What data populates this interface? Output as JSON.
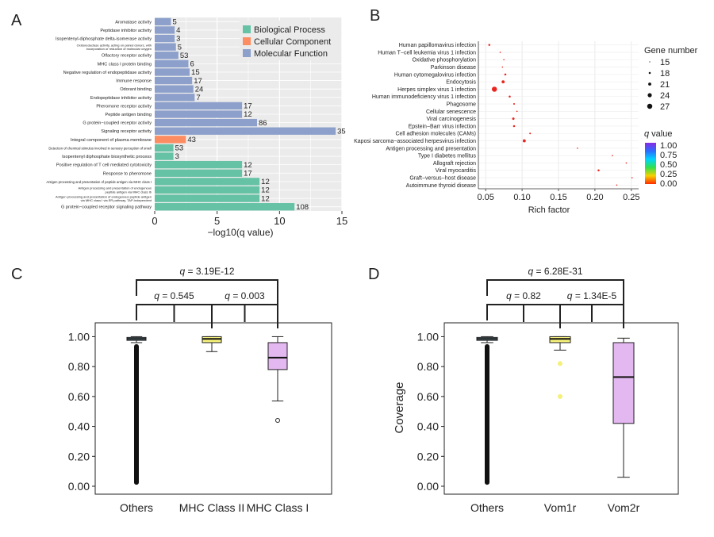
{
  "chart_data": [
    {
      "panel": "A",
      "type": "bar",
      "orientation": "horizontal",
      "xlabel": "−log10(q value)",
      "xlim": [
        0,
        15
      ],
      "xticks": [
        "0",
        "5",
        "10",
        "15"
      ],
      "legend": {
        "placement": "top-right",
        "entries": [
          {
            "name": "Biological Process",
            "color": "#66c2a5"
          },
          {
            "name": "Cellular Component",
            "color": "#fc8d62"
          },
          {
            "name": "Molecular Function",
            "color": "#8da0cb"
          }
        ]
      },
      "bars": [
        {
          "label": "Aromatase activity",
          "value": 1.3,
          "count": "5",
          "group": "Molecular Function"
        },
        {
          "label": "Peptidase inhibitor activity",
          "value": 1.6,
          "count": "4",
          "group": "Molecular Function"
        },
        {
          "label": "Isopentenyl-diphosphate delta-isomerase activity",
          "value": 1.6,
          "count": "3",
          "group": "Molecular Function"
        },
        {
          "label": "Oxidoreductase activity, acting on paired donors, with incorporation or reduction of molecular oxygen",
          "value": 1.7,
          "count": "5",
          "group": "Molecular Function"
        },
        {
          "label": "Olfactory receptor activity",
          "value": 1.9,
          "count": "53",
          "group": "Molecular Function"
        },
        {
          "label": "MHC class I protein binding",
          "value": 2.7,
          "count": "6",
          "group": "Molecular Function"
        },
        {
          "label": "Negative regulation of endopeptidase activity",
          "value": 2.8,
          "count": "15",
          "group": "Molecular Function"
        },
        {
          "label": "Immune response",
          "value": 3.0,
          "count": "17",
          "group": "Molecular Function"
        },
        {
          "label": "Odorant binding",
          "value": 3.1,
          "count": "24",
          "group": "Molecular Function"
        },
        {
          "label": "Endopeptidase inhibitor activity",
          "value": 3.2,
          "count": "7",
          "group": "Molecular Function"
        },
        {
          "label": "Pheromone receptor activity",
          "value": 7.0,
          "count": "17",
          "group": "Molecular Function"
        },
        {
          "label": "Peptide antigen binding",
          "value": 7.0,
          "count": "12",
          "group": "Molecular Function"
        },
        {
          "label": "G protein−coupled receptor activity",
          "value": 8.2,
          "count": "86",
          "group": "Molecular Function"
        },
        {
          "label": "Signaling receptor activity",
          "value": 14.5,
          "count": "35",
          "group": "Molecular Function"
        },
        {
          "label": "Integral component of plasma membrane",
          "value": 2.5,
          "count": "43",
          "group": "Cellular Component"
        },
        {
          "label": "Detection of chemical stimulus involved in sensory perception of smell",
          "value": 1.5,
          "count": "53",
          "group": "Biological Process"
        },
        {
          "label": "Isopentenyl diphosphate biosynthetic process",
          "value": 1.5,
          "count": "3",
          "group": "Biological Process"
        },
        {
          "label": "Positive regulation of T cell mediated cytotoxicity",
          "value": 7.0,
          "count": "12",
          "group": "Biological Process"
        },
        {
          "label": "Response to pheromone",
          "value": 7.0,
          "count": "17",
          "group": "Biological Process"
        },
        {
          "label": "Antigen processing and presentation of peptide antigen via MHC class I",
          "value": 8.4,
          "count": "12",
          "group": "Biological Process"
        },
        {
          "label": "Antigen processing and presentation of endogenous peptide antigen via MHC class Ib",
          "value": 8.4,
          "count": "12",
          "group": "Biological Process"
        },
        {
          "label": "Antigen processing and presentation of endogenous peptide antigen via MHC class I via ER pathway, TAP-independent",
          "value": 8.4,
          "count": "12",
          "group": "Biological Process"
        },
        {
          "label": "G protein−coupled receptor signaling pathway",
          "value": 11.2,
          "count": "108",
          "group": "Biological Process"
        }
      ]
    },
    {
      "panel": "B",
      "type": "scatter",
      "xlabel": "Rich factor",
      "xlim": [
        0.04,
        0.26
      ],
      "xticks": [
        "0.05",
        "0.10",
        "0.15",
        "0.20",
        "0.25"
      ],
      "size_legend": {
        "title": "Gene number",
        "entries": [
          "15",
          "18",
          "21",
          "24",
          "27"
        ]
      },
      "color_legend": {
        "title_italic": "q",
        "title_rest": " value",
        "ticks": [
          "1.00",
          "0.75",
          "0.50",
          "0.25",
          "0.00"
        ]
      },
      "points": [
        {
          "label": "Human papillomavirus infection",
          "x": 0.055,
          "genes": 18
        },
        {
          "label": "Human T−cell leukemia virus 1 infection",
          "x": 0.07,
          "genes": 16
        },
        {
          "label": "Oxidative phosphorylation",
          "x": 0.075,
          "genes": 15
        },
        {
          "label": "Parkinson disease",
          "x": 0.073,
          "genes": 15
        },
        {
          "label": "Human cytomegalovirus infection",
          "x": 0.077,
          "genes": 18
        },
        {
          "label": "Endocytosis",
          "x": 0.074,
          "genes": 21
        },
        {
          "label": "Herpes simplex virus 1 infection",
          "x": 0.062,
          "genes": 27
        },
        {
          "label": "Human immunodeficiency virus 1 infection",
          "x": 0.083,
          "genes": 18
        },
        {
          "label": "Phagosome",
          "x": 0.089,
          "genes": 17
        },
        {
          "label": "Cellular senescence",
          "x": 0.093,
          "genes": 16
        },
        {
          "label": "Viral carcinogenesis",
          "x": 0.088,
          "genes": 19
        },
        {
          "label": "Epstein−Barr virus infection",
          "x": 0.089,
          "genes": 18
        },
        {
          "label": "Cell adhesion molecules (CAMs)",
          "x": 0.111,
          "genes": 17
        },
        {
          "label": "Kaposi sarcoma−associated herpesvirus infection",
          "x": 0.103,
          "genes": 21
        },
        {
          "label": "Antigen processing and presentation",
          "x": 0.176,
          "genes": 15
        },
        {
          "label": "Type I diabetes mellitus",
          "x": 0.224,
          "genes": 15
        },
        {
          "label": "Allograft rejection",
          "x": 0.243,
          "genes": 15
        },
        {
          "label": "Viral myocarditis",
          "x": 0.205,
          "genes": 18
        },
        {
          "label": "Graft−versus−host disease",
          "x": 0.251,
          "genes": 15
        },
        {
          "label": "Autoimmune thyroid disease",
          "x": 0.23,
          "genes": 15
        }
      ]
    },
    {
      "panel": "C",
      "type": "box",
      "ylabel": "",
      "ylim": [
        0,
        1.05
      ],
      "yticks": [
        "0.00",
        "0.20",
        "0.40",
        "0.60",
        "0.80",
        "1.00"
      ],
      "groups": [
        {
          "name": "Others",
          "min": 0.96,
          "q1": 0.975,
          "median": 0.985,
          "q3": 0.995,
          "max": 1.0,
          "fill": "#a6cee3",
          "outliers_continuous": [
            0.01,
            0.95
          ]
        },
        {
          "name": "MHC Class II",
          "min": 0.9,
          "q1": 0.96,
          "median": 0.985,
          "q3": 1.0,
          "max": 1.0,
          "fill": "#f4f07a",
          "outliers": []
        },
        {
          "name": "MHC Class I",
          "min": 0.57,
          "q1": 0.78,
          "median": 0.86,
          "q3": 0.96,
          "max": 1.0,
          "fill": "#e3b7f0",
          "outliers": [
            0.44
          ]
        }
      ],
      "comparisons": [
        {
          "pair": [
            0,
            1
          ],
          "q_label": "q",
          "value": " = 0.545",
          "level": 1
        },
        {
          "pair": [
            1,
            2
          ],
          "q_label": "q",
          "value": " = 0.003",
          "level": 1
        },
        {
          "pair": [
            0,
            2
          ],
          "q_label": "q",
          "value": " = 3.19E-12",
          "level": 2
        }
      ]
    },
    {
      "panel": "D",
      "type": "box",
      "ylabel": "Coverage",
      "ylim": [
        0,
        1.05
      ],
      "yticks": [
        "0.00",
        "0.20",
        "0.40",
        "0.60",
        "0.80",
        "1.00"
      ],
      "groups": [
        {
          "name": "Others",
          "min": 0.96,
          "q1": 0.975,
          "median": 0.985,
          "q3": 0.995,
          "max": 1.0,
          "fill": "#a6cee3",
          "outliers_continuous": [
            0.01,
            0.95
          ]
        },
        {
          "name": "Vom1r",
          "min": 0.91,
          "q1": 0.96,
          "median": 0.985,
          "q3": 1.0,
          "max": 1.0,
          "fill": "#f4f07a",
          "outliers": [
            0.82,
            0.6
          ]
        },
        {
          "name": "Vom2r",
          "min": 0.06,
          "q1": 0.42,
          "median": 0.73,
          "q3": 0.96,
          "max": 0.99,
          "fill": "#e3b7f0",
          "outliers": []
        }
      ],
      "comparisons": [
        {
          "pair": [
            0,
            1
          ],
          "q_label": "q",
          "value": " = 0.82",
          "level": 1
        },
        {
          "pair": [
            1,
            2
          ],
          "q_label": "q",
          "value": " = 1.34E-5",
          "level": 1
        },
        {
          "pair": [
            0,
            2
          ],
          "q_label": "q",
          "value": " = 6.28E-31",
          "level": 2
        }
      ]
    }
  ],
  "panel_letters": [
    "A",
    "B",
    "C",
    "D"
  ],
  "colors": {
    "grid_bg": "#ebebeb",
    "point": "#e8261f"
  }
}
